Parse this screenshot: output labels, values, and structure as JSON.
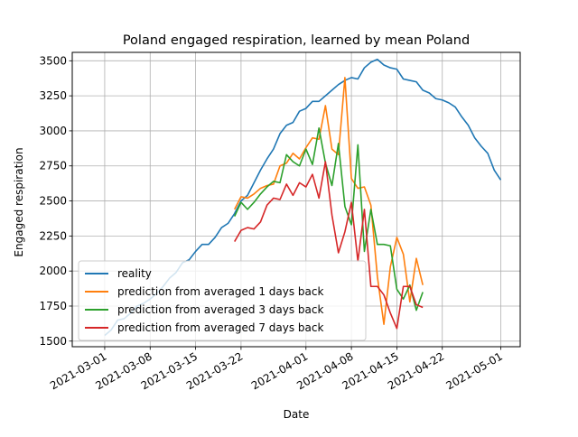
{
  "chart_data": {
    "type": "line",
    "title": "Poland engaged respiration, learned by mean Poland",
    "xlabel": "Date",
    "ylabel": "Engaged respiration",
    "x_ticks": [
      "2021-03-01",
      "2021-03-08",
      "2021-03-15",
      "2021-03-22",
      "2021-04-01",
      "2021-04-08",
      "2021-04-15",
      "2021-04-22",
      "2021-05-01"
    ],
    "y_ticks": [
      1500,
      1750,
      2000,
      2250,
      2500,
      2750,
      3000,
      3250,
      3500
    ],
    "xlim": [
      "2021-02-24",
      "2021-05-04"
    ],
    "ylim": [
      1460,
      3560
    ],
    "grid": true,
    "legend_position": "lower-left",
    "series": [
      {
        "name": "reality",
        "color": "#1f77b4",
        "start": "2021-03-01",
        "values": [
          1540,
          1580,
          1650,
          1660,
          1700,
          1750,
          1770,
          1800,
          1840,
          1890,
          1950,
          1990,
          2060,
          2080,
          2140,
          2190,
          2190,
          2240,
          2310,
          2340,
          2410,
          2500,
          2540,
          2630,
          2720,
          2800,
          2870,
          2980,
          3040,
          3060,
          3140,
          3160,
          3210,
          3210,
          3250,
          3290,
          3330,
          3360,
          3380,
          3370,
          3450,
          3490,
          3510,
          3470,
          3450,
          3440,
          3370,
          3360,
          3350,
          3290,
          3270,
          3230,
          3220,
          3200,
          3170,
          3100,
          3040,
          2950,
          2890,
          2840,
          2720,
          2650
        ]
      },
      {
        "name": "prediction from averaged 1 days back",
        "color": "#ff7f0e",
        "start": "2021-03-21",
        "values": [
          2440,
          2530,
          2520,
          2550,
          2590,
          2610,
          2620,
          2750,
          2770,
          2840,
          2800,
          2880,
          2950,
          2940,
          3180,
          2870,
          2830,
          3380,
          2660,
          2590,
          2600,
          2470,
          1960,
          1620,
          2030,
          2240,
          2120,
          1780,
          2090,
          1900
        ]
      },
      {
        "name": "prediction from averaged 3 days back",
        "color": "#2ca02c",
        "start": "2021-03-21",
        "values": [
          2390,
          2490,
          2440,
          2490,
          2550,
          2600,
          2640,
          2630,
          2830,
          2780,
          2750,
          2870,
          2760,
          3020,
          2770,
          2610,
          2910,
          2460,
          2330,
          2900,
          2140,
          2440,
          2190,
          2190,
          2180,
          1870,
          1800,
          1900,
          1720,
          1850
        ]
      },
      {
        "name": "prediction from averaged 7 days back",
        "color": "#d62728",
        "start": "2021-03-21",
        "values": [
          2210,
          2290,
          2310,
          2300,
          2350,
          2470,
          2520,
          2510,
          2620,
          2540,
          2630,
          2600,
          2690,
          2520,
          2780,
          2400,
          2130,
          2280,
          2490,
          2070,
          2440,
          1890,
          1890,
          1830,
          1700,
          1590,
          1890,
          1890,
          1760,
          1740
        ]
      }
    ]
  }
}
